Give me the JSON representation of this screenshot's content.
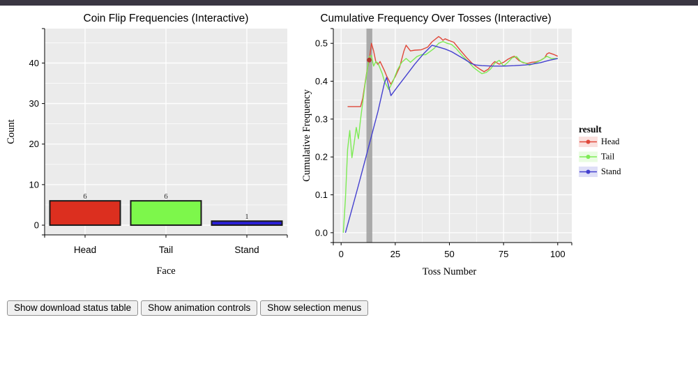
{
  "top_bar": {
    "color": "#3a3642"
  },
  "controls": {
    "buttons": [
      {
        "label": "Show download status table"
      },
      {
        "label": "Show animation controls"
      },
      {
        "label": "Show selection menus"
      }
    ]
  },
  "chart_data": [
    {
      "type": "bar",
      "title": "Coin Flip Frequencies (Interactive)",
      "xlabel": "Face",
      "ylabel": "Count",
      "categories": [
        "Head",
        "Tail",
        "Stand"
      ],
      "values": [
        6,
        6,
        1
      ],
      "value_labels": [
        "6",
        "6",
        "1"
      ],
      "bar_colors": [
        "#dc2f1f",
        "#7df74b",
        "#2a20d8"
      ],
      "bar_edge_color": "#1a1a1a",
      "ylim": [
        0,
        48
      ],
      "yticks": [
        0,
        10,
        20,
        30,
        40
      ],
      "yticks_minor": [
        5,
        15,
        25,
        35,
        45
      ],
      "panel_bg": "#ebebeb",
      "grid_color": "#ffffff",
      "grid": true
    },
    {
      "type": "line",
      "title": "Cumulative Frequency Over Tosses (Interactive)",
      "xlabel": "Toss Number",
      "ylabel": "Cumulative Frequency",
      "xlim": [
        0,
        100
      ],
      "ylim": [
        0,
        0.5
      ],
      "xticks": [
        0,
        25,
        50,
        75,
        100
      ],
      "xticks_minor": [
        12.5,
        37.5,
        62.5,
        87.5
      ],
      "yticks": [
        0,
        0.1,
        0.2,
        0.3,
        0.4,
        0.5
      ],
      "yticks_minor": [
        0.05,
        0.15,
        0.25,
        0.35,
        0.45
      ],
      "panel_bg": "#ebebeb",
      "grid_color": "#ffffff",
      "grid": true,
      "highlight_band": {
        "x_start": 11.7,
        "x_end": 14.4,
        "color": "#9e9e9e",
        "opacity": 0.85
      },
      "marker": {
        "series": "Head",
        "x": 13,
        "y": 0.456,
        "color": "#b0372c"
      },
      "legend": {
        "title": "result",
        "position": "right",
        "entries": [
          {
            "label": "Head",
            "color": "#e0483a"
          },
          {
            "label": "Tail",
            "color": "#7deb54"
          },
          {
            "label": "Stand",
            "color": "#4440cf"
          }
        ]
      },
      "series": [
        {
          "name": "Head",
          "color": "#e0483a",
          "points": [
            [
              3,
              0.333
            ],
            [
              9,
              0.333
            ],
            [
              10,
              0.355
            ],
            [
              12,
              0.43
            ],
            [
              13,
              0.456
            ],
            [
              14,
              0.5
            ],
            [
              15,
              0.48
            ],
            [
              16,
              0.452
            ],
            [
              17,
              0.444
            ],
            [
              18,
              0.452
            ],
            [
              20,
              0.428
            ],
            [
              21,
              0.414
            ],
            [
              23,
              0.392
            ],
            [
              25,
              0.412
            ],
            [
              27,
              0.437
            ],
            [
              29,
              0.48
            ],
            [
              30,
              0.495
            ],
            [
              32,
              0.48
            ],
            [
              34,
              0.482
            ],
            [
              37,
              0.483
            ],
            [
              40,
              0.49
            ],
            [
              42,
              0.504
            ],
            [
              45,
              0.518
            ],
            [
              46,
              0.514
            ],
            [
              47,
              0.508
            ],
            [
              48,
              0.512
            ],
            [
              50,
              0.507
            ],
            [
              52,
              0.503
            ],
            [
              55,
              0.482
            ],
            [
              58,
              0.462
            ],
            [
              60,
              0.45
            ],
            [
              62,
              0.44
            ],
            [
              64,
              0.432
            ],
            [
              66,
              0.425
            ],
            [
              68,
              0.432
            ],
            [
              70,
              0.447
            ],
            [
              71,
              0.452
            ],
            [
              73,
              0.445
            ],
            [
              75,
              0.45
            ],
            [
              77,
              0.458
            ],
            [
              79,
              0.464
            ],
            [
              80,
              0.466
            ],
            [
              82,
              0.455
            ],
            [
              84,
              0.449
            ],
            [
              86,
              0.447
            ],
            [
              88,
              0.45
            ],
            [
              90,
              0.451
            ],
            [
              92,
              0.455
            ],
            [
              94,
              0.462
            ],
            [
              95,
              0.472
            ],
            [
              96,
              0.475
            ],
            [
              98,
              0.471
            ],
            [
              100,
              0.466
            ]
          ]
        },
        {
          "name": "Tail",
          "color": "#7deb54",
          "points": [
            [
              1,
              0
            ],
            [
              2,
              0.09
            ],
            [
              3,
              0.22
            ],
            [
              4,
              0.27
            ],
            [
              5,
              0.198
            ],
            [
              6,
              0.235
            ],
            [
              7,
              0.278
            ],
            [
              8,
              0.248
            ],
            [
              9,
              0.3
            ],
            [
              11,
              0.39
            ],
            [
              13,
              0.465
            ],
            [
              14,
              0.468
            ],
            [
              15,
              0.44
            ],
            [
              16,
              0.452
            ],
            [
              17,
              0.448
            ],
            [
              19,
              0.42
            ],
            [
              20,
              0.4
            ],
            [
              22,
              0.378
            ],
            [
              24,
              0.4
            ],
            [
              26,
              0.43
            ],
            [
              28,
              0.45
            ],
            [
              30,
              0.46
            ],
            [
              32,
              0.45
            ],
            [
              35,
              0.465
            ],
            [
              37,
              0.47
            ],
            [
              39,
              0.47
            ],
            [
              41,
              0.478
            ],
            [
              43,
              0.487
            ],
            [
              45,
              0.5
            ],
            [
              47,
              0.505
            ],
            [
              49,
              0.5
            ],
            [
              51,
              0.497
            ],
            [
              53,
              0.487
            ],
            [
              56,
              0.467
            ],
            [
              59,
              0.45
            ],
            [
              61,
              0.437
            ],
            [
              63,
              0.428
            ],
            [
              65,
              0.42
            ],
            [
              67,
              0.423
            ],
            [
              69,
              0.432
            ],
            [
              71,
              0.448
            ],
            [
              73,
              0.455
            ],
            [
              75,
              0.44
            ],
            [
              77,
              0.45
            ],
            [
              79,
              0.462
            ],
            [
              81,
              0.465
            ],
            [
              83,
              0.452
            ],
            [
              85,
              0.448
            ],
            [
              87,
              0.442
            ],
            [
              89,
              0.447
            ],
            [
              91,
              0.452
            ],
            [
              93,
              0.458
            ],
            [
              95,
              0.466
            ],
            [
              97,
              0.46
            ],
            [
              100,
              0.46
            ]
          ]
        },
        {
          "name": "Stand",
          "color": "#4440cf",
          "points": [
            [
              2,
              0
            ],
            [
              5,
              0.062
            ],
            [
              8,
              0.125
            ],
            [
              11,
              0.19
            ],
            [
              14,
              0.255
            ],
            [
              17,
              0.32
            ],
            [
              20,
              0.395
            ],
            [
              21,
              0.41
            ],
            [
              23,
              0.362
            ],
            [
              26,
              0.385
            ],
            [
              30,
              0.415
            ],
            [
              34,
              0.445
            ],
            [
              38,
              0.472
            ],
            [
              42,
              0.495
            ],
            [
              45,
              0.49
            ],
            [
              48,
              0.485
            ],
            [
              51,
              0.478
            ],
            [
              54,
              0.468
            ],
            [
              57,
              0.458
            ],
            [
              60,
              0.447
            ],
            [
              62,
              0.443
            ],
            [
              65,
              0.441
            ],
            [
              70,
              0.44
            ],
            [
              75,
              0.44
            ],
            [
              80,
              0.441
            ],
            [
              85,
              0.443
            ],
            [
              88,
              0.445
            ],
            [
              92,
              0.449
            ],
            [
              96,
              0.455
            ],
            [
              100,
              0.46
            ]
          ]
        }
      ]
    }
  ]
}
